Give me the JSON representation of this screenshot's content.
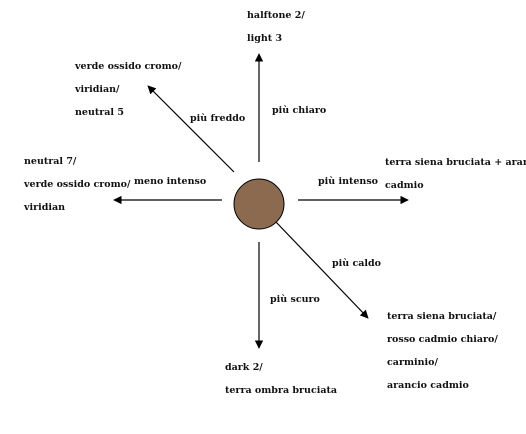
{
  "center": {
    "color": "#8c6a4f"
  },
  "arrows": {
    "up": {
      "label": "più chiaro",
      "target": [
        "halftone 2/",
        "light 3"
      ]
    },
    "down": {
      "label": "più scuro",
      "target": [
        "dark 2/",
        "terra ombra bruciata"
      ]
    },
    "left": {
      "label": "meno intenso",
      "target": [
        "neutral 7/",
        "verde ossido cromo/",
        "viridian"
      ]
    },
    "right": {
      "label": "più intenso",
      "target": [
        "terra siena bruciata + arancio",
        "cadmio"
      ]
    },
    "upleft": {
      "label": "più freddo",
      "target": [
        "verde ossido cromo/",
        "viridian/",
        "neutral 5"
      ]
    },
    "downright": {
      "label": "più caldo",
      "target": [
        "terra siena bruciata/",
        "rosso cadmio chiaro/",
        "carminio/",
        "arancio cadmio"
      ]
    }
  }
}
